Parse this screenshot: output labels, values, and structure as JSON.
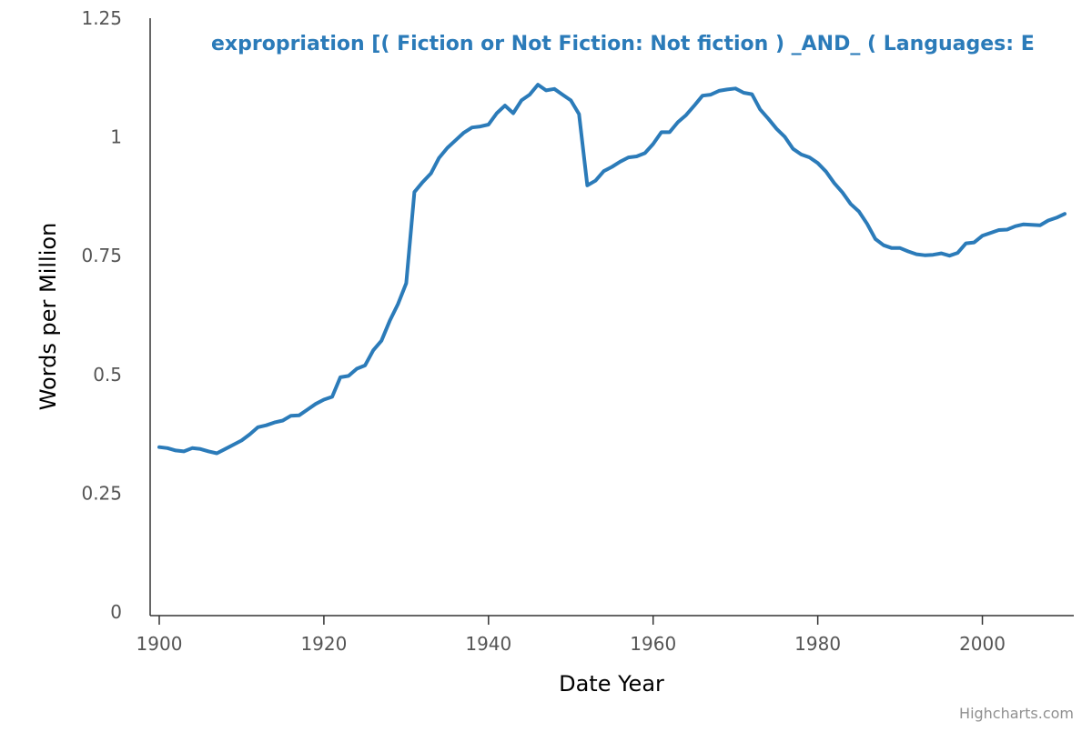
{
  "chart_data": {
    "type": "line",
    "title": "",
    "xlabel": "Date Year",
    "ylabel": "Words per Million",
    "xlim": [
      1900,
      2010
    ],
    "ylim": [
      0,
      1.25
    ],
    "x_ticks": [
      "1900",
      "1920",
      "1940",
      "1960",
      "1980",
      "2000"
    ],
    "y_ticks": [
      "0",
      "0.25",
      "0.5",
      "0.75",
      "1",
      "1.25"
    ],
    "grid": false,
    "legend": "none",
    "series": [
      {
        "name": "expropriation [( Fiction or Not Fiction: Not fiction ) _AND_ ( Languages: E",
        "color": "#2b7bb9",
        "x": [
          1900,
          1901,
          1902,
          1903,
          1904,
          1905,
          1906,
          1907,
          1908,
          1909,
          1910,
          1911,
          1912,
          1913,
          1914,
          1915,
          1916,
          1917,
          1918,
          1919,
          1920,
          1921,
          1922,
          1923,
          1924,
          1925,
          1926,
          1927,
          1928,
          1929,
          1930,
          1931,
          1932,
          1933,
          1934,
          1935,
          1936,
          1937,
          1938,
          1939,
          1940,
          1941,
          1942,
          1943,
          1944,
          1945,
          1946,
          1947,
          1948,
          1949,
          1950,
          1951,
          1952,
          1953,
          1954,
          1955,
          1956,
          1957,
          1958,
          1959,
          1960,
          1961,
          1962,
          1963,
          1964,
          1965,
          1966,
          1967,
          1968,
          1969,
          1970,
          1971,
          1972,
          1973,
          1974,
          1975,
          1976,
          1977,
          1978,
          1979,
          1980,
          1981,
          1982,
          1983,
          1984,
          1985,
          1986,
          1987,
          1988,
          1989,
          1990,
          1991,
          1992,
          1993,
          1994,
          1995,
          1996,
          1997,
          1998,
          1999,
          2000,
          2001,
          2002,
          2003,
          2004,
          2005,
          2006,
          2007,
          2008,
          2009,
          2010
        ],
        "values": [
          0.347,
          0.345,
          0.34,
          0.338,
          0.345,
          0.343,
          0.338,
          0.334,
          0.343,
          0.352,
          0.361,
          0.374,
          0.389,
          0.393,
          0.399,
          0.403,
          0.413,
          0.414,
          0.426,
          0.438,
          0.447,
          0.453,
          0.494,
          0.497,
          0.512,
          0.519,
          0.551,
          0.571,
          0.613,
          0.648,
          0.692,
          0.884,
          0.905,
          0.923,
          0.956,
          0.977,
          0.993,
          1.009,
          1.02,
          1.022,
          1.026,
          1.05,
          1.066,
          1.05,
          1.077,
          1.089,
          1.11,
          1.098,
          1.101,
          1.089,
          1.077,
          1.048,
          0.898,
          0.908,
          0.928,
          0.937,
          0.948,
          0.957,
          0.959,
          0.966,
          0.985,
          1.01,
          1.01,
          1.031,
          1.046,
          1.066,
          1.087,
          1.089,
          1.097,
          1.1,
          1.102,
          1.093,
          1.09,
          1.058,
          1.038,
          1.017,
          1.0,
          0.975,
          0.963,
          0.957,
          0.945,
          0.927,
          0.903,
          0.883,
          0.859,
          0.843,
          0.817,
          0.785,
          0.772,
          0.766,
          0.766,
          0.759,
          0.753,
          0.751,
          0.752,
          0.755,
          0.75,
          0.756,
          0.776,
          0.778,
          0.792,
          0.798,
          0.804,
          0.805,
          0.812,
          0.816,
          0.815,
          0.814,
          0.824,
          0.83,
          0.838
        ]
      }
    ]
  },
  "credits": "Highcharts.com"
}
